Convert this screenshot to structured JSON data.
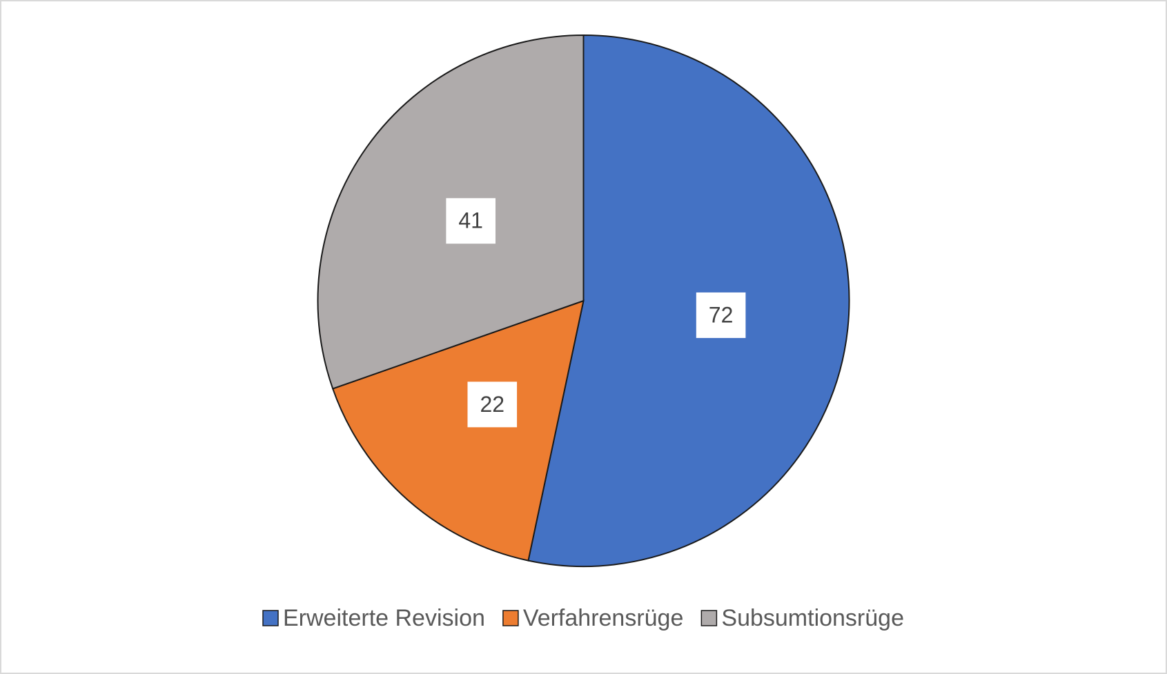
{
  "chart_data": {
    "type": "pie",
    "categories": [
      "Erweiterte Revision",
      "Verfahrensrüge",
      "Subsumtionsrüge"
    ],
    "values": [
      72,
      22,
      41
    ],
    "colors": [
      "#4472c4",
      "#ed7d31",
      "#afabab"
    ],
    "legend": "bottom"
  }
}
